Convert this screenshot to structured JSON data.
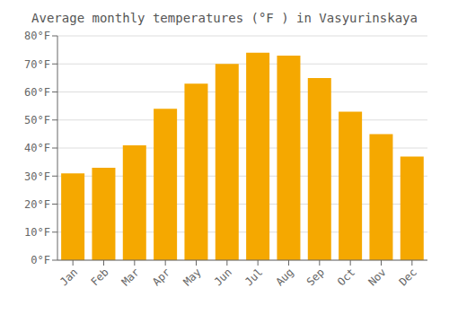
{
  "chart_data": {
    "type": "bar",
    "title": "Average monthly temperatures (°F ) in Vasyurinskaya",
    "categories": [
      "Jan",
      "Feb",
      "Mar",
      "Apr",
      "May",
      "Jun",
      "Jul",
      "Aug",
      "Sep",
      "Oct",
      "Nov",
      "Dec"
    ],
    "values": [
      31,
      33,
      41,
      54,
      63,
      70,
      74,
      73,
      65,
      53,
      45,
      37
    ],
    "color": "#F5A800",
    "ylim": [
      0,
      80
    ],
    "yticks": [
      {
        "value": 0,
        "label": "0°F"
      },
      {
        "value": 10,
        "label": "10°F"
      },
      {
        "value": 20,
        "label": "20°F"
      },
      {
        "value": 30,
        "label": "30°F"
      },
      {
        "value": 40,
        "label": "40°F"
      },
      {
        "value": 50,
        "label": "50°F"
      },
      {
        "value": 60,
        "label": "60°F"
      },
      {
        "value": 70,
        "label": "70°F"
      },
      {
        "value": 80,
        "label": "80°F"
      }
    ],
    "grid": true
  }
}
